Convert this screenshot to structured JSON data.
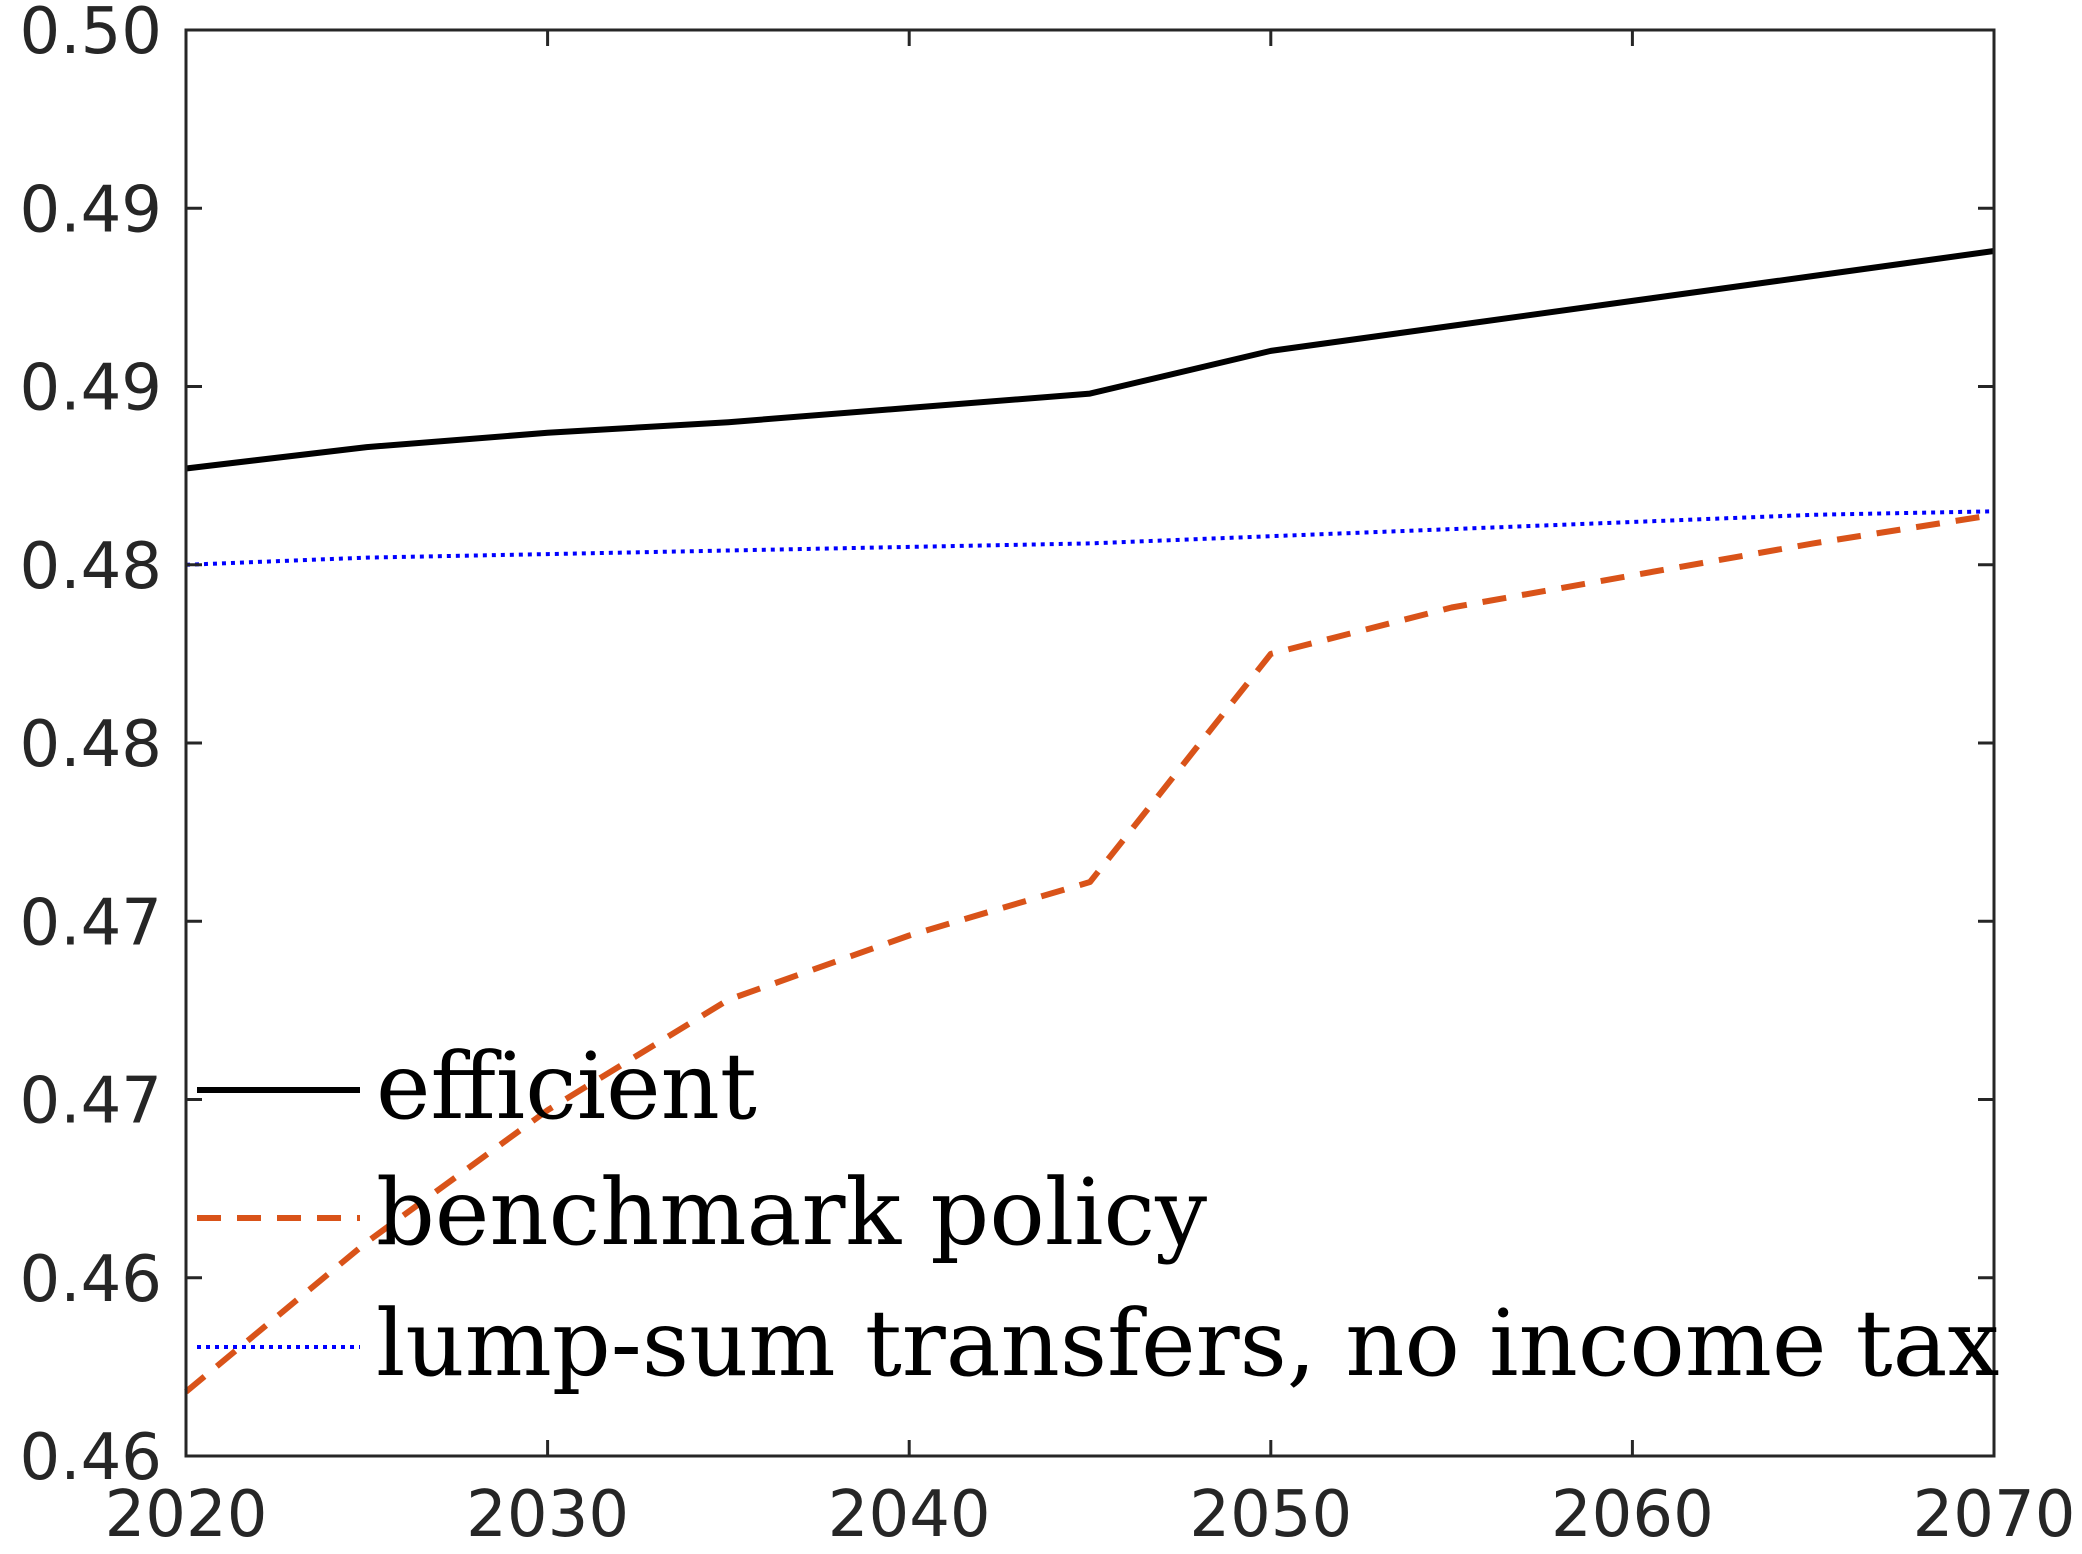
{
  "chart_data": {
    "type": "line",
    "title": "",
    "xlabel": "",
    "ylabel": "",
    "xlim": [
      2020,
      2070
    ],
    "ylim": [
      0.4575,
      0.4975
    ],
    "x_ticks": [
      2020,
      2030,
      2040,
      2050,
      2060,
      2070
    ],
    "x_tick_labels": [
      "2020",
      "2030",
      "2040",
      "2050",
      "2060",
      "2070"
    ],
    "y_ticks": [
      0.4575,
      0.4625,
      0.4675,
      0.4725,
      0.4775,
      0.4825,
      0.4875,
      0.4925,
      0.4975
    ],
    "y_tick_labels": [
      "0.46",
      "0.46",
      "0.47",
      "0.47",
      "0.48",
      "0.48",
      "0.49",
      "0.49",
      "0.50"
    ],
    "grid": false,
    "legend_position": "bottom-left",
    "x": [
      2020,
      2025,
      2030,
      2035,
      2040,
      2045,
      2050,
      2055,
      2060,
      2065,
      2070
    ],
    "series": [
      {
        "name": "efficient",
        "style": "solid",
        "color": "#000000",
        "values": [
          0.4852,
          0.4858,
          0.4862,
          0.4865,
          0.4869,
          0.4873,
          0.4885,
          0.4892,
          0.4899,
          0.4906,
          0.4913
        ]
      },
      {
        "name": "benchmark policy",
        "style": "dashed",
        "color": "#D95319",
        "values": [
          0.4593,
          0.4635,
          0.4672,
          0.4703,
          0.4721,
          0.4736,
          0.48,
          0.4813,
          0.4822,
          0.4831,
          0.4839
        ]
      },
      {
        "name": "lump-sum transfers, no income tax",
        "style": "dotted",
        "color": "#0000FF",
        "values": [
          0.4825,
          0.4827,
          0.4828,
          0.4829,
          0.483,
          0.4831,
          0.4833,
          0.4835,
          0.4837,
          0.4839,
          0.484
        ]
      }
    ]
  }
}
